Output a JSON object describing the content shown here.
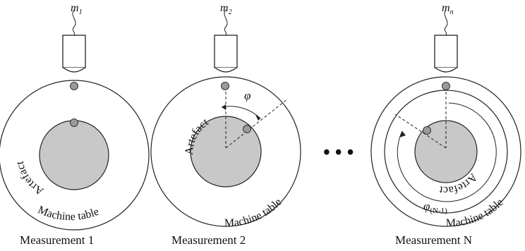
{
  "figure": {
    "panels": [
      {
        "caption": "Measurement 1",
        "probe_label": "m",
        "probe_sub": "1",
        "artefact_label": "Artefact",
        "table_label": "Machine table"
      },
      {
        "caption": "Measurement 2",
        "probe_label": "m",
        "probe_sub": "2",
        "artefact_label": "Artefact",
        "table_label": "Machine table",
        "angle_label": "φ"
      },
      {
        "caption": "Measurement N",
        "probe_label": "m",
        "probe_sub": "n",
        "artefact_label": "Artefact",
        "table_label": "Machine table",
        "angle_label": "φ",
        "angle_sub": "(N-1)"
      }
    ],
    "ellipsis": "• • •"
  },
  "colors": {
    "artefact_fill": "#c8c8c8",
    "marker_fill": "#9a9a9a",
    "line": "#222222"
  }
}
